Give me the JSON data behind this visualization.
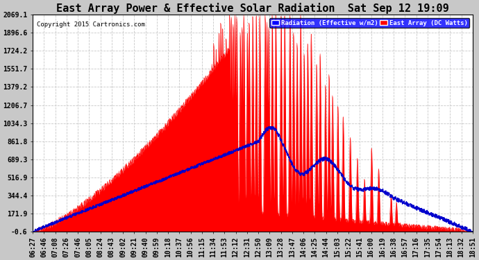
{
  "title": "East Array Power & Effective Solar Radiation  Sat Sep 12 19:09",
  "copyright": "Copyright 2015 Cartronics.com",
  "legend_radiation": "Radiation (Effective w/m2)",
  "legend_east": "East Array (DC Watts)",
  "ymin": -0.6,
  "ymax": 2069.1,
  "yticks": [
    2069.1,
    1896.6,
    1724.2,
    1551.7,
    1379.2,
    1206.7,
    1034.3,
    861.8,
    689.3,
    516.9,
    344.4,
    171.9,
    -0.6
  ],
  "background_color": "#c8c8c8",
  "plot_bg_color": "#ffffff",
  "grid_color": "#c8c8c8",
  "radiation_color": "#0000cc",
  "east_array_color": "#ff0000",
  "title_fontsize": 11,
  "tick_fontsize": 7,
  "xtick_labels": [
    "06:27",
    "06:46",
    "07:08",
    "07:26",
    "07:46",
    "08:05",
    "08:24",
    "08:43",
    "09:02",
    "09:21",
    "09:40",
    "09:59",
    "10:18",
    "10:37",
    "10:56",
    "11:15",
    "11:34",
    "11:53",
    "12:12",
    "12:31",
    "12:50",
    "13:09",
    "13:28",
    "13:47",
    "14:06",
    "14:25",
    "14:44",
    "15:03",
    "15:22",
    "15:41",
    "16:00",
    "16:19",
    "16:38",
    "16:57",
    "17:16",
    "17:35",
    "17:54",
    "18:13",
    "18:32",
    "18:51"
  ]
}
